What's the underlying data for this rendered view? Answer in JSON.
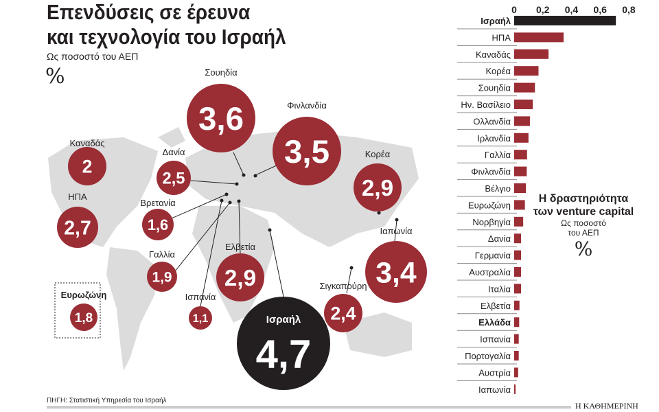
{
  "title_line1": "Επενδύσεις σε έρευνα",
  "title_line2": "και τεχνολογία του Ισραήλ",
  "subtitle": "Ως ποσοστό του ΑΕΠ",
  "percent_symbol": "%",
  "source": "ΠΗΓΗ: Στατιστική Υπηρεσία του Ισραήλ",
  "publisher": "Η ΚΑΘΗΜΕΡΙΝΗ",
  "colors": {
    "bubble": "#9b2d35",
    "israel": "#231f20",
    "map": "#d9d9d9"
  },
  "chart_data": [
    {
      "type": "bubble-map",
      "title": "Επενδύσεις σε έρευνα και τεχνολογία του Ισραήλ",
      "unit": "% ΑΕΠ",
      "points": [
        {
          "label": "Σουηδία",
          "value": "3,6"
        },
        {
          "label": "Φινλανδία",
          "value": "3,5"
        },
        {
          "label": "Καναδάς",
          "value": "2"
        },
        {
          "label": "Δανία",
          "value": "2,5"
        },
        {
          "label": "ΗΠΑ",
          "value": "2,7"
        },
        {
          "label": "Βρετανία",
          "value": "1,6"
        },
        {
          "label": "Κορέα",
          "value": "2,9"
        },
        {
          "label": "Ιαπωνία",
          "value": "3,4"
        },
        {
          "label": "Γαλλία",
          "value": "1,9"
        },
        {
          "label": "Ελβετία",
          "value": "2,9"
        },
        {
          "label": "Ισπανία",
          "value": "1,1"
        },
        {
          "label": "Σιγκαπούρη",
          "value": "2,4"
        },
        {
          "label": "Ισραήλ",
          "value": "4,7"
        },
        {
          "label": "Ευρωζώνη",
          "value": "1,8"
        }
      ]
    },
    {
      "type": "bar",
      "title": "Η δραστηριότητα των venture capital",
      "subtitle_line1": "Ως ποσοστό",
      "subtitle_line2": "του ΑΕΠ",
      "unit": "%",
      "xlim": [
        0,
        0.8
      ],
      "ticks": [
        "0",
        "0,2",
        "0,4",
        "0,6",
        "0,8"
      ],
      "categories": [
        "Ισραήλ",
        "ΗΠΑ",
        "Καναδάς",
        "Κορέα",
        "Σουηδία",
        "Ην. Βασίλειο",
        "Ολλανδία",
        "Ιρλανδία",
        "Γαλλία",
        "Φινλανδία",
        "Βέλγιο",
        "Ευρωζώνη",
        "Νορβηγία",
        "Δανία",
        "Γερμανία",
        "Αυστραλία",
        "Ιταλία",
        "Ελβετία",
        "Ελλάδα",
        "Ισπανία",
        "Πορτογαλία",
        "Αυστρία",
        "Ιαπωνία"
      ],
      "values": [
        0.71,
        0.345,
        0.24,
        0.17,
        0.145,
        0.13,
        0.11,
        0.1,
        0.09,
        0.088,
        0.082,
        0.075,
        0.063,
        0.048,
        0.048,
        0.048,
        0.048,
        0.037,
        0.035,
        0.032,
        0.032,
        0.028,
        0.01
      ],
      "bold": [
        "Ισραήλ",
        "Ελλάδα"
      ]
    }
  ]
}
